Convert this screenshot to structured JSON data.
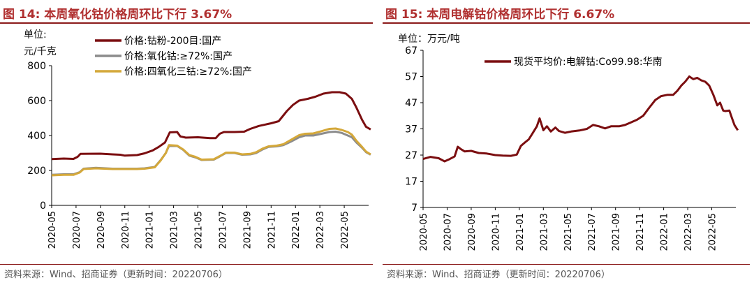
{
  "charts": [
    {
      "title": "图 14:  本周氧化钴价格周环比下行 3.67%",
      "unit_line1": "单位:",
      "unit_line2": "元/千克",
      "source": "资料来源：Wind、招商证券（更新时间：20220706）"
    },
    {
      "title": "图 15:  本周电解钴价格周环比下行 6.67%",
      "unit": "单位：万元/吨",
      "source": "资料来源：Wind、招商证券（更新时间：20220706）"
    }
  ],
  "chart_data": [
    {
      "type": "line",
      "title": "图 14:  本周氧化钴价格周环比下行 3.67%",
      "ylabel": "单位: 元/千克",
      "ylim": [
        0,
        800
      ],
      "yticks": [
        0,
        200,
        400,
        600,
        800
      ],
      "xlim": [
        "2020-05",
        "2022-07"
      ],
      "xticks": [
        "2020-05",
        "2020-07",
        "2020-09",
        "2020-11",
        "2021-01",
        "2021-03",
        "2021-05",
        "2021-07",
        "2021-09",
        "2021-11",
        "2022-01",
        "2022-03",
        "2022-05"
      ],
      "legend_position": "top-left",
      "series": [
        {
          "name": "价格:钴粉-200目:国产",
          "color": "#7b0e10",
          "points": [
            [
              "2020-05-01",
              265
            ],
            [
              "2020-06-01",
              268
            ],
            [
              "2020-06-25",
              266
            ],
            [
              "2020-07-05",
              278
            ],
            [
              "2020-07-12",
              295
            ],
            [
              "2020-09-01",
              296
            ],
            [
              "2020-10-01",
              292
            ],
            [
              "2020-10-20",
              290
            ],
            [
              "2020-11-01",
              285
            ],
            [
              "2020-12-01",
              288
            ],
            [
              "2020-12-20",
              298
            ],
            [
              "2021-01-10",
              315
            ],
            [
              "2021-01-25",
              335
            ],
            [
              "2021-02-10",
              360
            ],
            [
              "2021-02-22",
              418
            ],
            [
              "2021-03-10",
              420
            ],
            [
              "2021-03-18",
              395
            ],
            [
              "2021-04-01",
              388
            ],
            [
              "2021-05-01",
              390
            ],
            [
              "2021-06-01",
              385
            ],
            [
              "2021-06-15",
              385
            ],
            [
              "2021-06-25",
              410
            ],
            [
              "2021-07-05",
              420
            ],
            [
              "2021-08-01",
              420
            ],
            [
              "2021-08-25",
              422
            ],
            [
              "2021-09-10",
              438
            ],
            [
              "2021-10-01",
              455
            ],
            [
              "2021-11-01",
              470
            ],
            [
              "2021-11-20",
              482
            ],
            [
              "2021-12-10",
              540
            ],
            [
              "2021-12-25",
              575
            ],
            [
              "2022-01-10",
              600
            ],
            [
              "2022-02-01",
              610
            ],
            [
              "2022-02-20",
              622
            ],
            [
              "2022-03-10",
              640
            ],
            [
              "2022-04-01",
              648
            ],
            [
              "2022-04-20",
              648
            ],
            [
              "2022-05-05",
              640
            ],
            [
              "2022-05-20",
              610
            ],
            [
              "2022-06-01",
              560
            ],
            [
              "2022-06-15",
              490
            ],
            [
              "2022-06-25",
              450
            ],
            [
              "2022-07-06",
              435
            ]
          ]
        },
        {
          "name": "价格:氧化钴:≥72%:国产",
          "color": "#8c8c8c",
          "points": [
            [
              "2020-05-01",
              175
            ],
            [
              "2020-06-01",
              178
            ],
            [
              "2020-06-25",
              178
            ],
            [
              "2020-07-10",
              190
            ],
            [
              "2020-07-20",
              210
            ],
            [
              "2020-08-20",
              215
            ],
            [
              "2020-10-01",
              210
            ],
            [
              "2020-12-01",
              210
            ],
            [
              "2020-12-20",
              212
            ],
            [
              "2021-01-15",
              220
            ],
            [
              "2021-01-30",
              260
            ],
            [
              "2021-02-12",
              300
            ],
            [
              "2021-02-20",
              340
            ],
            [
              "2021-03-10",
              340
            ],
            [
              "2021-03-25",
              318
            ],
            [
              "2021-04-10",
              285
            ],
            [
              "2021-04-25",
              275
            ],
            [
              "2021-05-10",
              260
            ],
            [
              "2021-06-10",
              262
            ],
            [
              "2021-06-25",
              280
            ],
            [
              "2021-07-10",
              300
            ],
            [
              "2021-08-01",
              300
            ],
            [
              "2021-08-20",
              290
            ],
            [
              "2021-09-10",
              292
            ],
            [
              "2021-09-25",
              300
            ],
            [
              "2021-10-10",
              320
            ],
            [
              "2021-10-25",
              335
            ],
            [
              "2021-11-15",
              338
            ],
            [
              "2021-12-01",
              345
            ],
            [
              "2021-12-20",
              365
            ],
            [
              "2022-01-10",
              390
            ],
            [
              "2022-01-25",
              400
            ],
            [
              "2022-02-15",
              400
            ],
            [
              "2022-03-05",
              410
            ],
            [
              "2022-03-25",
              420
            ],
            [
              "2022-04-10",
              422
            ],
            [
              "2022-04-25",
              415
            ],
            [
              "2022-05-10",
              400
            ],
            [
              "2022-05-20",
              390
            ],
            [
              "2022-06-01",
              360
            ],
            [
              "2022-06-15",
              330
            ],
            [
              "2022-06-25",
              305
            ],
            [
              "2022-07-06",
              290
            ]
          ]
        },
        {
          "name": "价格:四氧化三钴:≥72%:国产",
          "color": "#d4a83a",
          "points": [
            [
              "2020-05-01",
              172
            ],
            [
              "2020-06-01",
              175
            ],
            [
              "2020-06-25",
              175
            ],
            [
              "2020-07-10",
              188
            ],
            [
              "2020-07-20",
              208
            ],
            [
              "2020-08-20",
              212
            ],
            [
              "2020-10-01",
              208
            ],
            [
              "2020-12-01",
              208
            ],
            [
              "2020-12-20",
              210
            ],
            [
              "2021-01-15",
              218
            ],
            [
              "2021-01-30",
              258
            ],
            [
              "2021-02-12",
              300
            ],
            [
              "2021-02-20",
              345
            ],
            [
              "2021-03-10",
              342
            ],
            [
              "2021-03-25",
              320
            ],
            [
              "2021-04-10",
              288
            ],
            [
              "2021-04-25",
              278
            ],
            [
              "2021-05-10",
              262
            ],
            [
              "2021-06-10",
              264
            ],
            [
              "2021-06-25",
              282
            ],
            [
              "2021-07-10",
              302
            ],
            [
              "2021-08-01",
              302
            ],
            [
              "2021-08-20",
              292
            ],
            [
              "2021-09-10",
              295
            ],
            [
              "2021-09-25",
              305
            ],
            [
              "2021-10-10",
              325
            ],
            [
              "2021-10-25",
              338
            ],
            [
              "2021-11-15",
              342
            ],
            [
              "2021-12-01",
              350
            ],
            [
              "2021-12-20",
              375
            ],
            [
              "2022-01-10",
              402
            ],
            [
              "2022-01-25",
              410
            ],
            [
              "2022-02-15",
              412
            ],
            [
              "2022-03-05",
              425
            ],
            [
              "2022-03-25",
              438
            ],
            [
              "2022-04-10",
              440
            ],
            [
              "2022-04-25",
              432
            ],
            [
              "2022-05-10",
              420
            ],
            [
              "2022-05-20",
              405
            ],
            [
              "2022-06-01",
              370
            ],
            [
              "2022-06-15",
              335
            ],
            [
              "2022-06-25",
              308
            ],
            [
              "2022-07-06",
              292
            ]
          ]
        }
      ]
    },
    {
      "type": "line",
      "title": "图 15:  本周电解钴价格周环比下行 6.67%",
      "ylabel": "单位：万元/吨",
      "ylim": [
        7,
        67
      ],
      "yticks": [
        7,
        17,
        27,
        37,
        47,
        57,
        67
      ],
      "xlim": [
        "2020-05",
        "2022-07"
      ],
      "xticks": [
        "2020-05",
        "2020-07",
        "2020-09",
        "2020-11",
        "2021-01",
        "2021-03",
        "2021-05",
        "2021-07",
        "2021-09",
        "2021-11",
        "2022-01",
        "2022-03",
        "2022-05"
      ],
      "legend_position": "top-right",
      "series": [
        {
          "name": "现货平均价:电解钴:Co99.98:华南",
          "color": "#7b0e10",
          "points": [
            [
              "2020-05-01",
              25.5
            ],
            [
              "2020-05-20",
              26.3
            ],
            [
              "2020-06-10",
              25.8
            ],
            [
              "2020-06-25",
              24.6
            ],
            [
              "2020-07-05",
              25.3
            ],
            [
              "2020-07-20",
              26.5
            ],
            [
              "2020-07-28",
              30.2
            ],
            [
              "2020-08-05",
              29.3
            ],
            [
              "2020-08-15",
              28.4
            ],
            [
              "2020-09-01",
              28.6
            ],
            [
              "2020-09-20",
              27.8
            ],
            [
              "2020-10-10",
              27.6
            ],
            [
              "2020-11-01",
              27.0
            ],
            [
              "2020-11-20",
              26.8
            ],
            [
              "2020-12-10",
              26.7
            ],
            [
              "2020-12-25",
              27.2
            ],
            [
              "2021-01-05",
              30.5
            ],
            [
              "2021-01-15",
              31.8
            ],
            [
              "2021-01-25",
              33.0
            ],
            [
              "2021-02-05",
              35.5
            ],
            [
              "2021-02-15",
              38.0
            ],
            [
              "2021-02-22",
              41.0
            ],
            [
              "2021-03-01",
              36.5
            ],
            [
              "2021-03-10",
              38.0
            ],
            [
              "2021-03-20",
              36.0
            ],
            [
              "2021-04-01",
              37.5
            ],
            [
              "2021-04-10",
              36.2
            ],
            [
              "2021-04-25",
              35.5
            ],
            [
              "2021-05-10",
              36.0
            ],
            [
              "2021-06-01",
              36.4
            ],
            [
              "2021-06-20",
              37.0
            ],
            [
              "2021-07-05",
              38.5
            ],
            [
              "2021-07-20",
              38.0
            ],
            [
              "2021-08-05",
              37.2
            ],
            [
              "2021-08-20",
              38.0
            ],
            [
              "2021-09-10",
              38.0
            ],
            [
              "2021-09-25",
              38.5
            ],
            [
              "2021-10-10",
              39.5
            ],
            [
              "2021-10-25",
              40.5
            ],
            [
              "2021-11-10",
              42.0
            ],
            [
              "2021-11-25",
              45.0
            ],
            [
              "2021-12-10",
              48.0
            ],
            [
              "2021-12-25",
              49.5
            ],
            [
              "2022-01-10",
              50.0
            ],
            [
              "2022-01-25",
              50.0
            ],
            [
              "2022-02-05",
              51.5
            ],
            [
              "2022-02-15",
              53.5
            ],
            [
              "2022-02-25",
              55.0
            ],
            [
              "2022-03-05",
              57.0
            ],
            [
              "2022-03-15",
              56.0
            ],
            [
              "2022-03-25",
              56.5
            ],
            [
              "2022-04-05",
              55.5
            ],
            [
              "2022-04-15",
              55.0
            ],
            [
              "2022-04-25",
              53.5
            ],
            [
              "2022-05-05",
              50.0
            ],
            [
              "2022-05-15",
              46.0
            ],
            [
              "2022-05-22",
              47.0
            ],
            [
              "2022-05-30",
              44.0
            ],
            [
              "2022-06-05",
              43.8
            ],
            [
              "2022-06-15",
              44.0
            ],
            [
              "2022-06-22",
              41.0
            ],
            [
              "2022-06-28",
              38.5
            ],
            [
              "2022-07-06",
              36.5
            ]
          ]
        }
      ]
    }
  ]
}
